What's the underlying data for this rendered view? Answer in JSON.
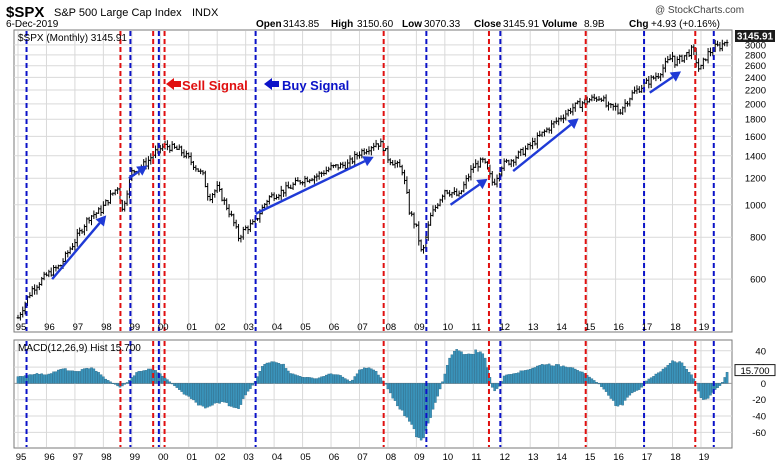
{
  "header": {
    "symbol": "$SPX",
    "name": "S&P 500 Large Cap Index",
    "exchange": "INDX",
    "date": "6-Dec-2019",
    "watermark": "@ StockCharts.com",
    "quote": {
      "open_label": "Open",
      "open": "3143.85",
      "high_label": "High",
      "high": "3150.60",
      "low_label": "Low",
      "low": "3070.33",
      "close_label": "Close",
      "close": "3145.91",
      "volume_label": "Volume",
      "volume": "8.9B",
      "chg_label": "Chg",
      "chg": "+4.93 (+0.16%)"
    }
  },
  "legend": {
    "price_label": "$SPX (Monthly) 3145.91",
    "sell_signal": "Sell Signal",
    "buy_signal": "Buy Signal",
    "macd_label": "MACD(12,26,9) Hist 15.700"
  },
  "colors": {
    "bars": "#000000",
    "arrow": "#1f3ad6",
    "sell": "#e01010",
    "buy": "#0b12c8",
    "hist": "#3a93ba",
    "grid": "#d9d9d9",
    "label_box": "#1c1c1c"
  },
  "chart_data": [
    {
      "type": "ohlc-bar",
      "title": "$SPX (Monthly)",
      "scale": "log",
      "ylim": [
        420,
        3300
      ],
      "y_ticks": [
        600,
        800,
        1000,
        1200,
        1400,
        1600,
        1800,
        2000,
        2200,
        2400,
        2600,
        2800,
        3000
      ],
      "last_value": "3145.91",
      "x_ticks": [
        {
          "label": "95",
          "t": 1995.0
        },
        {
          "label": "96",
          "t": 1996.0
        },
        {
          "label": "97",
          "t": 1997.0
        },
        {
          "label": "98",
          "t": 1998.0
        },
        {
          "label": "99",
          "t": 1999.0
        },
        {
          "label": "00",
          "t": 2000.0
        },
        {
          "label": "01",
          "t": 2001.0
        },
        {
          "label": "02",
          "t": 2002.0
        },
        {
          "label": "03",
          "t": 2003.0
        },
        {
          "label": "04",
          "t": 2004.0
        },
        {
          "label": "05",
          "t": 2005.0
        },
        {
          "label": "06",
          "t": 2006.0
        },
        {
          "label": "07",
          "t": 2007.0
        },
        {
          "label": "08",
          "t": 2008.0
        },
        {
          "label": "09",
          "t": 2009.0
        },
        {
          "label": "10",
          "t": 2010.0
        },
        {
          "label": "11",
          "t": 2011.0
        },
        {
          "label": "12",
          "t": 2012.0
        },
        {
          "label": "13",
          "t": 2013.0
        },
        {
          "label": "14",
          "t": 2014.0
        },
        {
          "label": "15",
          "t": 2015.0
        },
        {
          "label": "16",
          "t": 2016.0
        },
        {
          "label": "17",
          "t": 2017.0
        },
        {
          "label": "18",
          "t": 2018.0
        },
        {
          "label": "19",
          "t": 2019.0
        }
      ],
      "x_range": [
        1995.0,
        2019.95
      ],
      "price_path": [
        [
          1995.0,
          460
        ],
        [
          1995.5,
          560
        ],
        [
          1996.0,
          615
        ],
        [
          1996.5,
          660
        ],
        [
          1997.0,
          780
        ],
        [
          1997.5,
          920
        ],
        [
          1997.9,
          960
        ],
        [
          1998.5,
          1130
        ],
        [
          1998.67,
          960
        ],
        [
          1999.0,
          1250
        ],
        [
          1999.5,
          1330
        ],
        [
          1999.9,
          1460
        ],
        [
          2000.2,
          1500
        ],
        [
          2000.7,
          1450
        ],
        [
          2001.0,
          1370
        ],
        [
          2001.5,
          1220
        ],
        [
          2001.7,
          1050
        ],
        [
          2002.0,
          1120
        ],
        [
          2002.5,
          920
        ],
        [
          2002.75,
          800
        ],
        [
          2003.0,
          850
        ],
        [
          2003.3,
          880
        ],
        [
          2003.8,
          1050
        ],
        [
          2004.5,
          1120
        ],
        [
          2005.0,
          1190
        ],
        [
          2005.5,
          1220
        ],
        [
          2006.0,
          1290
        ],
        [
          2006.6,
          1320
        ],
        [
          2007.0,
          1430
        ],
        [
          2007.6,
          1530
        ],
        [
          2007.8,
          1510
        ],
        [
          2008.0,
          1380
        ],
        [
          2008.5,
          1270
        ],
        [
          2008.75,
          960
        ],
        [
          2009.0,
          850
        ],
        [
          2009.2,
          700
        ],
        [
          2009.5,
          920
        ],
        [
          2010.0,
          1110
        ],
        [
          2010.5,
          1060
        ],
        [
          2011.0,
          1300
        ],
        [
          2011.35,
          1350
        ],
        [
          2011.7,
          1150
        ],
        [
          2012.0,
          1310
        ],
        [
          2012.4,
          1370
        ],
        [
          2013.0,
          1500
        ],
        [
          2013.5,
          1650
        ],
        [
          2014.0,
          1800
        ],
        [
          2014.5,
          1950
        ],
        [
          2015.0,
          2050
        ],
        [
          2015.5,
          2100
        ],
        [
          2015.7,
          1950
        ],
        [
          2016.0,
          1950
        ],
        [
          2016.1,
          1880
        ],
        [
          2016.6,
          2150
        ],
        [
          2017.0,
          2280
        ],
        [
          2017.5,
          2450
        ],
        [
          2018.0,
          2780
        ],
        [
          2018.1,
          2650
        ],
        [
          2018.7,
          2900
        ],
        [
          2018.95,
          2500
        ],
        [
          2019.2,
          2800
        ],
        [
          2019.5,
          2950
        ],
        [
          2019.7,
          2980
        ],
        [
          2019.95,
          3145
        ]
      ],
      "annotations": [
        {
          "kind": "trend-arrow",
          "from": [
            1996.2,
            600
          ],
          "to": [
            1998.1,
            930
          ]
        },
        {
          "kind": "trend-arrow",
          "from": [
            1998.9,
            1200
          ],
          "to": [
            1999.55,
            1310
          ]
        },
        {
          "kind": "trend-arrow",
          "from": [
            2003.35,
            940
          ],
          "to": [
            2007.5,
            1390
          ]
        },
        {
          "kind": "trend-arrow",
          "from": [
            2010.2,
            1000
          ],
          "to": [
            2011.5,
            1195
          ]
        },
        {
          "kind": "trend-arrow",
          "from": [
            2012.4,
            1260
          ],
          "to": [
            2014.7,
            1810
          ]
        },
        {
          "kind": "trend-arrow",
          "from": [
            2017.2,
            2160
          ],
          "to": [
            2018.3,
            2500
          ]
        }
      ]
    },
    {
      "type": "histogram",
      "title": "MACD(12,26,9) Hist",
      "last_value": "15.700",
      "ylim": [
        -78,
        52
      ],
      "y_ticks": [
        -60,
        -40,
        -20,
        0,
        20,
        40
      ],
      "hist_path": [
        [
          1995.0,
          8
        ],
        [
          1995.6,
          12
        ],
        [
          1996.0,
          11
        ],
        [
          1996.6,
          18
        ],
        [
          1997.0,
          14
        ],
        [
          1997.6,
          20
        ],
        [
          1998.1,
          5
        ],
        [
          1998.6,
          -5
        ],
        [
          1998.8,
          0
        ],
        [
          1999.2,
          14
        ],
        [
          1999.7,
          18
        ],
        [
          2000.0,
          12
        ],
        [
          2000.4,
          0
        ],
        [
          2000.8,
          -12
        ],
        [
          2001.2,
          -22
        ],
        [
          2001.6,
          -32
        ],
        [
          2001.9,
          -26
        ],
        [
          2002.2,
          -22
        ],
        [
          2002.5,
          -28
        ],
        [
          2002.75,
          -30
        ],
        [
          2003.0,
          -14
        ],
        [
          2003.3,
          0
        ],
        [
          2003.6,
          22
        ],
        [
          2004.0,
          28
        ],
        [
          2004.3,
          24
        ],
        [
          2004.6,
          12
        ],
        [
          2005.0,
          8
        ],
        [
          2005.5,
          6
        ],
        [
          2006.0,
          12
        ],
        [
          2006.3,
          10
        ],
        [
          2006.7,
          2
        ],
        [
          2007.0,
          16
        ],
        [
          2007.3,
          20
        ],
        [
          2007.6,
          14
        ],
        [
          2007.9,
          0
        ],
        [
          2008.2,
          -20
        ],
        [
          2008.6,
          -40
        ],
        [
          2009.0,
          -62
        ],
        [
          2009.2,
          -70
        ],
        [
          2009.5,
          -40
        ],
        [
          2009.9,
          0
        ],
        [
          2010.2,
          36
        ],
        [
          2010.5,
          42
        ],
        [
          2010.8,
          34
        ],
        [
          2011.1,
          40
        ],
        [
          2011.4,
          35
        ],
        [
          2011.7,
          -10
        ],
        [
          2011.9,
          -5
        ],
        [
          2012.1,
          10
        ],
        [
          2012.6,
          14
        ],
        [
          2013.0,
          18
        ],
        [
          2013.5,
          24
        ],
        [
          2014.0,
          22
        ],
        [
          2014.5,
          20
        ],
        [
          2014.9,
          12
        ],
        [
          2015.4,
          0
        ],
        [
          2015.7,
          -12
        ],
        [
          2016.0,
          -26
        ],
        [
          2016.2,
          -28
        ],
        [
          2016.5,
          -14
        ],
        [
          2016.9,
          -6
        ],
        [
          2017.1,
          4
        ],
        [
          2017.6,
          15
        ],
        [
          2018.0,
          28
        ],
        [
          2018.3,
          26
        ],
        [
          2018.6,
          14
        ],
        [
          2018.8,
          3
        ],
        [
          2019.0,
          -18
        ],
        [
          2019.2,
          -20
        ],
        [
          2019.5,
          -8
        ],
        [
          2019.7,
          -2
        ],
        [
          2019.95,
          15.7
        ]
      ]
    }
  ],
  "signals": {
    "buy": [
      1995.3,
      1998.95,
      1999.95,
      2003.35,
      2009.35,
      2011.95,
      2017.0,
      2019.45
    ],
    "sell": [
      1998.6,
      1999.75,
      2000.15,
      2007.85,
      2011.55,
      2014.95,
      2018.8
    ]
  }
}
